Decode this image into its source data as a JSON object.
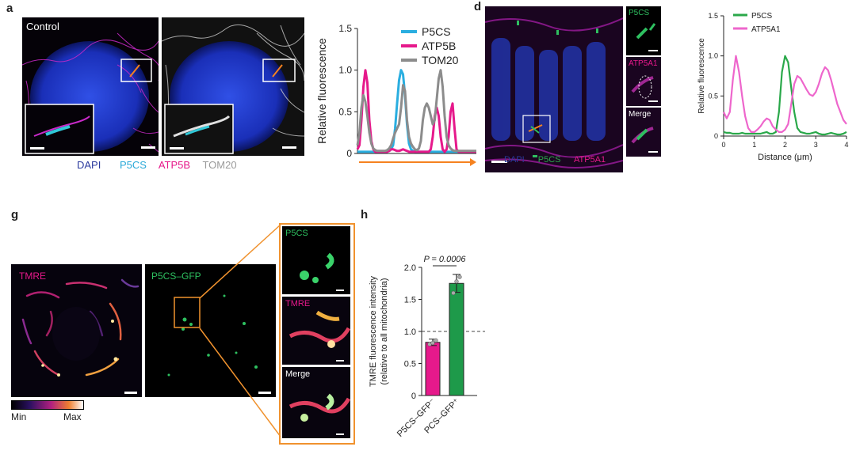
{
  "panel_a": {
    "letter": "a",
    "control_label": "Control",
    "channels": [
      {
        "label": "DAPI",
        "color": "#2b3a9e"
      },
      {
        "label": "P5CS",
        "color": "#2aa9d8"
      },
      {
        "label": "ATP5B",
        "color": "#e6198b"
      },
      {
        "label": "TOM20",
        "color": "#9a9a9a"
      }
    ]
  },
  "panel_d": {
    "letter": "d",
    "inset_labels": {
      "p5cs": "P5CS",
      "atp5a1": "ATP5A1",
      "merge": "Merge"
    },
    "channels": [
      {
        "label": "DAPI",
        "color": "#2b3a9e"
      },
      {
        "label": "P5CS",
        "color": "#2aa84a"
      },
      {
        "label": "ATP5A1",
        "color": "#e6198b"
      }
    ]
  },
  "panel_g": {
    "letter": "g",
    "tmre_label": "TMRE",
    "gfp_label": "P5CS–GFP",
    "inset_labels": {
      "p5cs": "P5CS",
      "tmre": "TMRE",
      "merge": "Merge"
    },
    "colorbar": {
      "min": "Min",
      "max": "Max"
    }
  },
  "panel_h": {
    "letter": "h"
  },
  "chart_data": [
    {
      "type": "line",
      "panel": "a",
      "ylabel": "Relative fluorescence",
      "ylim": [
        0,
        1.5
      ],
      "yticks": [
        "0",
        "0.5",
        "1.0",
        "1.5"
      ],
      "legend": "top-right",
      "x": [
        0,
        1,
        2,
        3,
        4,
        5,
        6,
        7,
        8,
        9,
        10,
        11,
        12,
        13,
        14,
        15,
        16,
        17,
        18,
        19,
        20,
        21,
        22,
        23,
        24,
        25,
        26,
        27,
        28,
        29,
        30,
        31,
        32,
        33,
        34,
        35,
        36,
        37,
        38,
        39,
        40,
        41,
        42,
        43,
        44,
        45,
        46,
        47,
        48,
        49,
        50,
        51,
        52,
        53,
        54,
        55,
        56,
        57,
        58,
        59,
        60
      ],
      "series": [
        {
          "name": "P5CS",
          "color": "#2aaee0",
          "values": [
            0.02,
            0.02,
            0.02,
            0.02,
            0.02,
            0.02,
            0.02,
            0.02,
            0.02,
            0.02,
            0.02,
            0.02,
            0.02,
            0.02,
            0.02,
            0.02,
            0.03,
            0.05,
            0.1,
            0.3,
            0.6,
            0.88,
            1.0,
            0.95,
            0.7,
            0.35,
            0.12,
            0.05,
            0.03,
            0.02,
            0.02,
            0.02,
            0.02,
            0.02,
            0.02,
            0.02,
            0.02,
            0.02,
            0.02,
            0.02,
            0.02,
            0.02,
            0.02,
            0.02,
            0.02,
            0.02,
            0.02,
            0.02,
            0.02,
            0.02,
            0.02,
            0.02,
            0.02,
            0.02,
            0.02,
            0.02,
            0.02,
            0.02,
            0.02,
            0.02,
            0.02
          ]
        },
        {
          "name": "ATP5B",
          "color": "#e6198b",
          "values": [
            0.05,
            0.1,
            0.4,
            0.8,
            1.0,
            0.85,
            0.4,
            0.15,
            0.05,
            0.02,
            0.02,
            0.02,
            0.02,
            0.02,
            0.02,
            0.02,
            0.03,
            0.05,
            0.05,
            0.04,
            0.03,
            0.03,
            0.04,
            0.05,
            0.04,
            0.03,
            0.02,
            0.02,
            0.02,
            0.02,
            0.02,
            0.02,
            0.02,
            0.02,
            0.02,
            0.02,
            0.02,
            0.05,
            0.2,
            0.45,
            0.55,
            0.45,
            0.2,
            0.05,
            0.02,
            0.05,
            0.2,
            0.5,
            0.6,
            0.3,
            0.05,
            0.02,
            0.02,
            0.02,
            0.02,
            0.02,
            0.02,
            0.02,
            0.02,
            0.02,
            0.02
          ]
        },
        {
          "name": "TOM20",
          "color": "#8c8c8c",
          "values": [
            0.1,
            0.25,
            0.55,
            0.7,
            0.62,
            0.45,
            0.25,
            0.12,
            0.06,
            0.04,
            0.03,
            0.03,
            0.03,
            0.03,
            0.03,
            0.04,
            0.06,
            0.1,
            0.18,
            0.25,
            0.3,
            0.35,
            0.55,
            0.82,
            0.75,
            0.4,
            0.2,
            0.12,
            0.08,
            0.05,
            0.04,
            0.06,
            0.15,
            0.4,
            0.55,
            0.6,
            0.55,
            0.45,
            0.35,
            0.4,
            0.65,
            0.9,
            1.0,
            0.8,
            0.45,
            0.2,
            0.1,
            0.06,
            0.04,
            0.03,
            0.03,
            0.03,
            0.03,
            0.03,
            0.03,
            0.03,
            0.03,
            0.03,
            0.03,
            0.03,
            0.03
          ]
        }
      ]
    },
    {
      "type": "line",
      "panel": "d",
      "xlabel": "Distance (μm)",
      "ylabel": "Relative fluorescence",
      "xlim": [
        0,
        4
      ],
      "ylim": [
        0,
        1.5
      ],
      "xticks": [
        "0",
        "1",
        "2",
        "3",
        "4"
      ],
      "yticks": [
        "0",
        "0.5",
        "1.0",
        "1.5"
      ],
      "legend": "top-right",
      "x": [
        0,
        0.1,
        0.2,
        0.3,
        0.4,
        0.5,
        0.6,
        0.7,
        0.8,
        0.9,
        1.0,
        1.1,
        1.2,
        1.3,
        1.4,
        1.5,
        1.6,
        1.7,
        1.8,
        1.9,
        2.0,
        2.1,
        2.2,
        2.3,
        2.4,
        2.5,
        2.6,
        2.7,
        2.8,
        2.9,
        3.0,
        3.1,
        3.2,
        3.3,
        3.4,
        3.5,
        3.6,
        3.7,
        3.8,
        3.9,
        4.0
      ],
      "series": [
        {
          "name": "P5CS",
          "color": "#2aa84a",
          "values": [
            0.05,
            0.04,
            0.04,
            0.03,
            0.03,
            0.03,
            0.04,
            0.03,
            0.03,
            0.03,
            0.03,
            0.03,
            0.03,
            0.04,
            0.05,
            0.03,
            0.03,
            0.05,
            0.3,
            0.8,
            1.0,
            0.92,
            0.6,
            0.3,
            0.1,
            0.05,
            0.04,
            0.03,
            0.03,
            0.04,
            0.05,
            0.03,
            0.02,
            0.02,
            0.03,
            0.04,
            0.03,
            0.02,
            0.02,
            0.03,
            0.05
          ]
        },
        {
          "name": "ATP5A1",
          "color": "#ee66cc",
          "values": [
            0.3,
            0.22,
            0.3,
            0.7,
            1.0,
            0.8,
            0.5,
            0.25,
            0.1,
            0.05,
            0.05,
            0.08,
            0.12,
            0.18,
            0.22,
            0.2,
            0.12,
            0.08,
            0.05,
            0.05,
            0.08,
            0.15,
            0.4,
            0.65,
            0.75,
            0.72,
            0.65,
            0.58,
            0.52,
            0.5,
            0.55,
            0.65,
            0.78,
            0.86,
            0.82,
            0.7,
            0.55,
            0.4,
            0.3,
            0.2,
            0.15
          ]
        }
      ]
    },
    {
      "type": "bar",
      "panel": "h",
      "ylabel": "TMRE fluorescence intensity (relative to all mitochondria)",
      "ylim": [
        0,
        2.0
      ],
      "yticks": [
        "0",
        "0.5",
        "1.0",
        "1.5",
        "2.0"
      ],
      "categories": [
        "P5CS–GFP⁻",
        "PCS–GFP⁺"
      ],
      "values": [
        0.83,
        1.75
      ],
      "errors": [
        0.05,
        0.14
      ],
      "colors": [
        "#e6198b",
        "#1e9a4a"
      ],
      "reference_line": 1.0,
      "points": [
        [
          0.8,
          0.82,
          0.86
        ],
        [
          1.6,
          1.78,
          1.85
        ]
      ],
      "annotation": "P = 0.0006"
    }
  ]
}
